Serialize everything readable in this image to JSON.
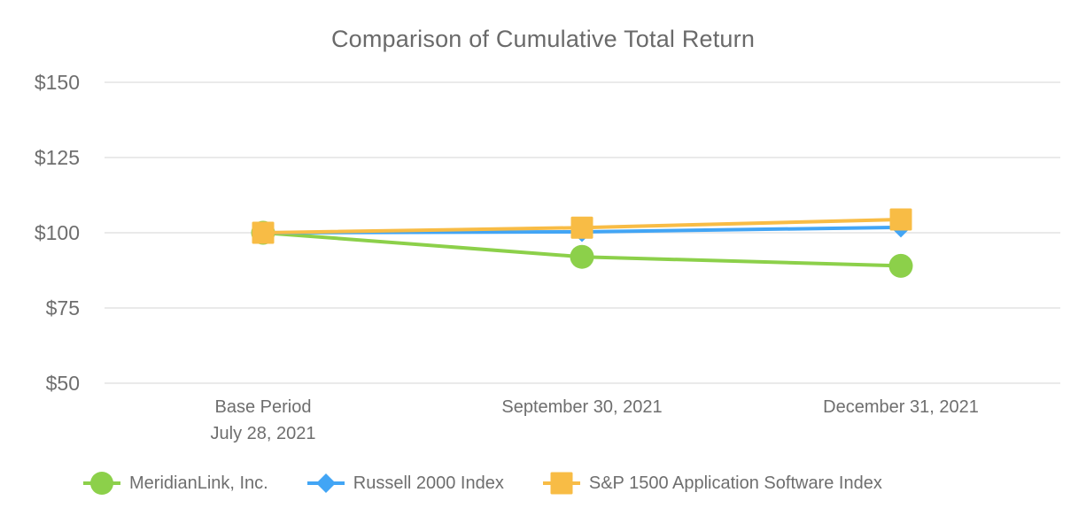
{
  "title": "Comparison of Cumulative Total Return",
  "colors": {
    "meridianlink": "#8CD04A",
    "russell": "#42A5F5",
    "sp1500": "#F8BC45",
    "text": "#6E6E6E",
    "gridline": "#EAEAEA"
  },
  "y_axis": {
    "tick_labels": [
      "$150",
      "$125",
      "$100",
      "$75",
      "$50"
    ]
  },
  "x_axis": {
    "ticks": [
      {
        "line1": "Base Period",
        "line2": "July 28, 2021"
      },
      {
        "line1": "September 30, 2021",
        "line2": ""
      },
      {
        "line1": "December 31, 2021",
        "line2": ""
      }
    ]
  },
  "legend": [
    {
      "label": "MeridianLink, Inc.",
      "marker": "circle"
    },
    {
      "label": "Russell 2000 Index",
      "marker": "diamond"
    },
    {
      "label": "S&P 1500 Application Software Index",
      "marker": "square"
    }
  ],
  "chart_data": {
    "type": "line",
    "title": "Comparison of Cumulative Total Return",
    "categories": [
      "Base Period July 28, 2021",
      "September 30, 2021",
      "December 31, 2021"
    ],
    "series": [
      {
        "name": "MeridianLink, Inc.",
        "marker": "circle",
        "color": "#8CD04A",
        "values": [
          100,
          92,
          89
        ]
      },
      {
        "name": "Russell 2000 Index",
        "marker": "diamond",
        "color": "#42A5F5",
        "values": [
          100,
          100.3,
          101.8
        ]
      },
      {
        "name": "S&P 1500 Application Software Index",
        "marker": "square",
        "color": "#F8BC45",
        "values": [
          100,
          101.7,
          104.4
        ]
      }
    ],
    "ylim": [
      50,
      150
    ],
    "y_ticks": [
      150,
      125,
      100,
      75,
      50
    ],
    "y_tick_format": "$",
    "xlabel": "",
    "ylabel": "",
    "grid": "horizontal",
    "legend_position": "bottom"
  }
}
